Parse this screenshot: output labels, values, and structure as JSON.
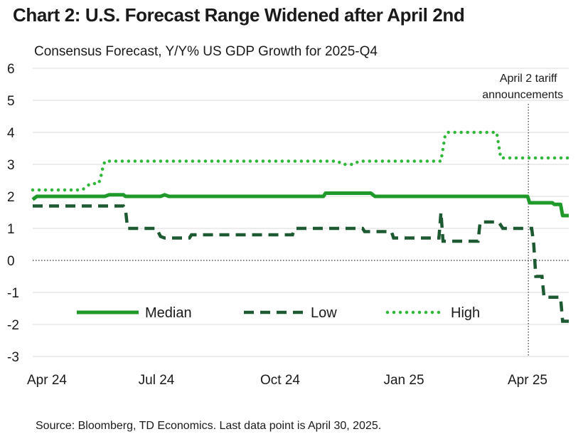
{
  "title": "Chart 2: U.S. Forecast Range Widened after April 2nd",
  "source": "Source: Bloomberg, TD Economics. Last data point is April 30, 2025.",
  "colors": {
    "median": "#1f9a2a",
    "low": "#1d5a32",
    "high": "#2fb83a",
    "grid": "#d9d9d9",
    "zero": "#333333"
  },
  "chart_data": {
    "type": "line",
    "title": "Consensus Forecast, Y/Y% US GDP Growth for 2025-Q4",
    "xlabel": "",
    "ylabel": "",
    "x_unit": "months since Apr 1, 2024",
    "xlim": [
      0,
      13
    ],
    "ylim": [
      -3,
      6
    ],
    "yticks": [
      6,
      5,
      4,
      3,
      2,
      1,
      0,
      -1,
      -2,
      -3
    ],
    "yticklabels": [
      "6",
      "5",
      "4",
      "3",
      "2",
      "1",
      "0",
      "-1",
      "-2",
      "-3"
    ],
    "xticks": [
      0,
      3,
      6,
      9,
      12
    ],
    "xticklabels": [
      "Apr 24",
      "Jul 24",
      "Oct 24",
      "Jan 25",
      "Apr 25"
    ],
    "legend": {
      "position": "bottom-left",
      "entries": [
        "Median",
        "Low",
        "High"
      ]
    },
    "annotation": {
      "x": 12.02,
      "line1": "April 2 tariff",
      "line2": "announcements"
    },
    "series": [
      {
        "name": "Median",
        "style": "solid",
        "points": [
          [
            0,
            1.9
          ],
          [
            0.1,
            2.0
          ],
          [
            1.75,
            2.0
          ],
          [
            1.85,
            2.05
          ],
          [
            2.2,
            2.05
          ],
          [
            2.25,
            2.0
          ],
          [
            3.1,
            2.0
          ],
          [
            3.2,
            2.05
          ],
          [
            3.3,
            2.0
          ],
          [
            7.05,
            2.0
          ],
          [
            7.1,
            2.1
          ],
          [
            8.2,
            2.1
          ],
          [
            8.3,
            2.0
          ],
          [
            12.0,
            2.0
          ],
          [
            12.05,
            1.8
          ],
          [
            12.6,
            1.8
          ],
          [
            12.65,
            1.75
          ],
          [
            12.8,
            1.75
          ],
          [
            12.85,
            1.4
          ],
          [
            13.0,
            1.4
          ]
        ]
      },
      {
        "name": "Low",
        "style": "dashed",
        "points": [
          [
            0,
            1.7
          ],
          [
            2.2,
            1.7
          ],
          [
            2.25,
            1.6
          ],
          [
            2.3,
            1.0
          ],
          [
            3.0,
            1.0
          ],
          [
            3.1,
            0.75
          ],
          [
            3.2,
            0.7
          ],
          [
            3.8,
            0.7
          ],
          [
            3.85,
            0.8
          ],
          [
            6.3,
            0.8
          ],
          [
            6.35,
            1.0
          ],
          [
            8.0,
            1.0
          ],
          [
            8.05,
            0.9
          ],
          [
            8.7,
            0.9
          ],
          [
            8.75,
            0.7
          ],
          [
            9.85,
            0.7
          ],
          [
            9.9,
            1.5
          ],
          [
            9.95,
            0.6
          ],
          [
            10.8,
            0.6
          ],
          [
            10.85,
            1.2
          ],
          [
            11.3,
            1.2
          ],
          [
            11.4,
            1.0
          ],
          [
            12.1,
            1.0
          ],
          [
            12.15,
            0.5
          ],
          [
            12.2,
            -0.5
          ],
          [
            12.35,
            -0.5
          ],
          [
            12.4,
            -1.15
          ],
          [
            12.8,
            -1.15
          ],
          [
            12.85,
            -1.9
          ],
          [
            13.0,
            -1.9
          ]
        ]
      },
      {
        "name": "High",
        "style": "dotted",
        "points": [
          [
            0,
            2.2
          ],
          [
            1.2,
            2.2
          ],
          [
            1.3,
            2.3
          ],
          [
            1.4,
            2.4
          ],
          [
            1.6,
            2.4
          ],
          [
            1.65,
            2.6
          ],
          [
            1.7,
            2.9
          ],
          [
            1.75,
            3.1
          ],
          [
            7.4,
            3.1
          ],
          [
            7.5,
            3.0
          ],
          [
            7.8,
            3.0
          ],
          [
            7.9,
            3.1
          ],
          [
            9.9,
            3.1
          ],
          [
            9.95,
            3.5
          ],
          [
            10.0,
            3.9
          ],
          [
            10.05,
            4.0
          ],
          [
            11.25,
            4.0
          ],
          [
            11.3,
            3.6
          ],
          [
            11.35,
            3.2
          ],
          [
            13.0,
            3.2
          ]
        ]
      }
    ]
  }
}
